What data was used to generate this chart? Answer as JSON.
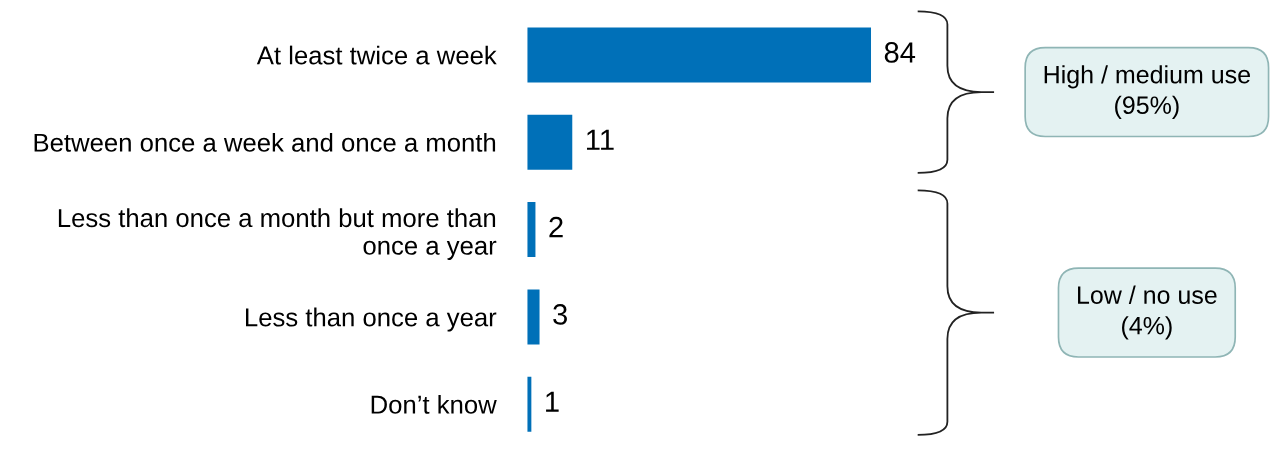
{
  "chart_data": {
    "type": "bar",
    "orientation": "horizontal",
    "categories": [
      "At least twice a week",
      "Between once a week and once a month",
      "Less than once a month but more than\nonce a year",
      "Less than once a year",
      "Don’t know"
    ],
    "values": [
      84,
      11,
      2,
      3,
      1
    ],
    "color": "#0070b8",
    "data_labels": true,
    "grid": false,
    "legend": false,
    "annotations": [
      "High / medium use\n(95%)",
      "Low / no use\n(4%)"
    ]
  }
}
